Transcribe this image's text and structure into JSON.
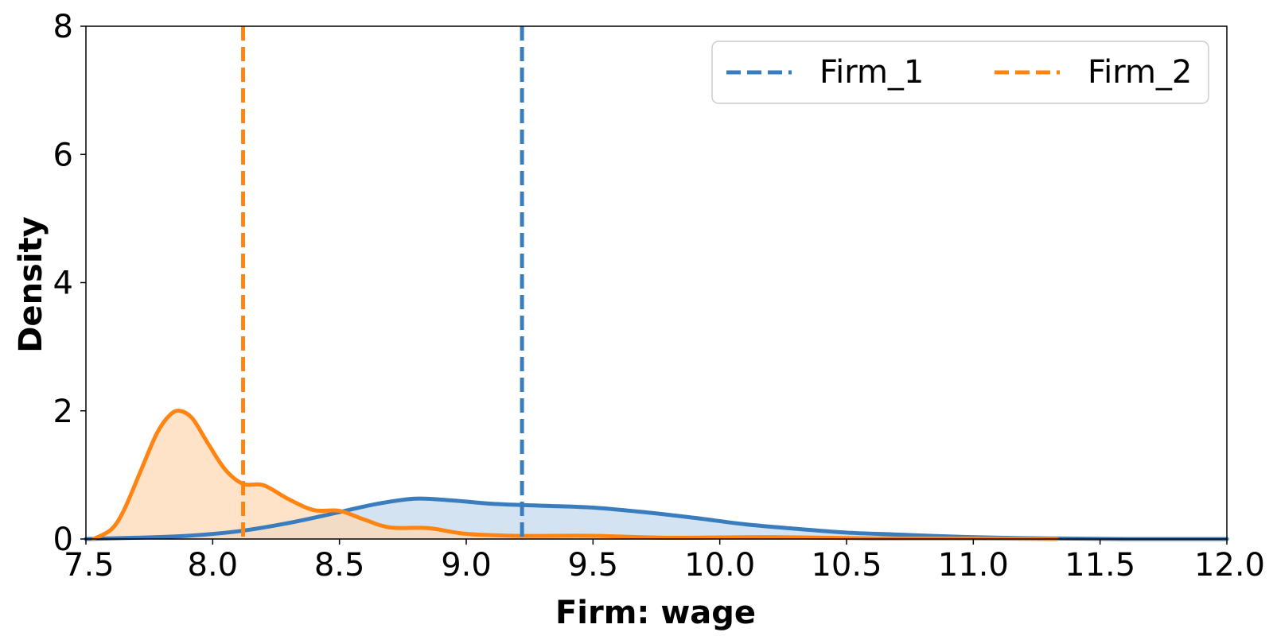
{
  "chart_data": {
    "type": "area",
    "xlabel": "Firm: wage",
    "ylabel": "Density",
    "xlim": [
      7.5,
      12.0
    ],
    "ylim": [
      0,
      8
    ],
    "x_ticks": [
      "7.5",
      "8.0",
      "8.5",
      "9.0",
      "9.5",
      "10.0",
      "10.5",
      "11.0",
      "11.5",
      "12.0"
    ],
    "y_ticks": [
      "0",
      "2",
      "4",
      "6",
      "8"
    ],
    "grid": false,
    "legend": {
      "placement": "top-right",
      "columns": 2
    },
    "series": [
      {
        "name": "Firm_1",
        "color": "#3a7dbf",
        "fill": "#c5d9ee",
        "mean_line_x": 9.22,
        "density": [
          [
            7.5,
            0.0
          ],
          [
            7.7,
            0.02
          ],
          [
            7.9,
            0.05
          ],
          [
            8.1,
            0.12
          ],
          [
            8.3,
            0.25
          ],
          [
            8.5,
            0.42
          ],
          [
            8.65,
            0.55
          ],
          [
            8.8,
            0.63
          ],
          [
            8.95,
            0.6
          ],
          [
            9.1,
            0.55
          ],
          [
            9.3,
            0.52
          ],
          [
            9.5,
            0.49
          ],
          [
            9.7,
            0.42
          ],
          [
            9.9,
            0.33
          ],
          [
            10.1,
            0.23
          ],
          [
            10.3,
            0.16
          ],
          [
            10.5,
            0.1
          ],
          [
            10.7,
            0.07
          ],
          [
            10.9,
            0.04
          ],
          [
            11.1,
            0.02
          ],
          [
            11.3,
            0.01
          ],
          [
            11.6,
            0.0
          ],
          [
            12.0,
            0.0
          ]
        ]
      },
      {
        "name": "Firm_2",
        "color": "#ff8412",
        "fill": "#fdd9b5",
        "mean_line_x": 8.12,
        "density": [
          [
            7.53,
            0.0
          ],
          [
            7.6,
            0.15
          ],
          [
            7.65,
            0.45
          ],
          [
            7.72,
            1.1
          ],
          [
            7.78,
            1.65
          ],
          [
            7.83,
            1.93
          ],
          [
            7.87,
            2.0
          ],
          [
            7.92,
            1.88
          ],
          [
            7.98,
            1.5
          ],
          [
            8.05,
            1.08
          ],
          [
            8.12,
            0.86
          ],
          [
            8.2,
            0.84
          ],
          [
            8.3,
            0.62
          ],
          [
            8.4,
            0.45
          ],
          [
            8.5,
            0.44
          ],
          [
            8.6,
            0.3
          ],
          [
            8.7,
            0.18
          ],
          [
            8.85,
            0.17
          ],
          [
            9.0,
            0.08
          ],
          [
            9.2,
            0.05
          ],
          [
            9.5,
            0.05
          ],
          [
            9.8,
            0.02
          ],
          [
            10.2,
            0.03
          ],
          [
            10.6,
            0.01
          ],
          [
            11.0,
            0.01
          ],
          [
            11.33,
            0.0
          ]
        ]
      }
    ]
  }
}
